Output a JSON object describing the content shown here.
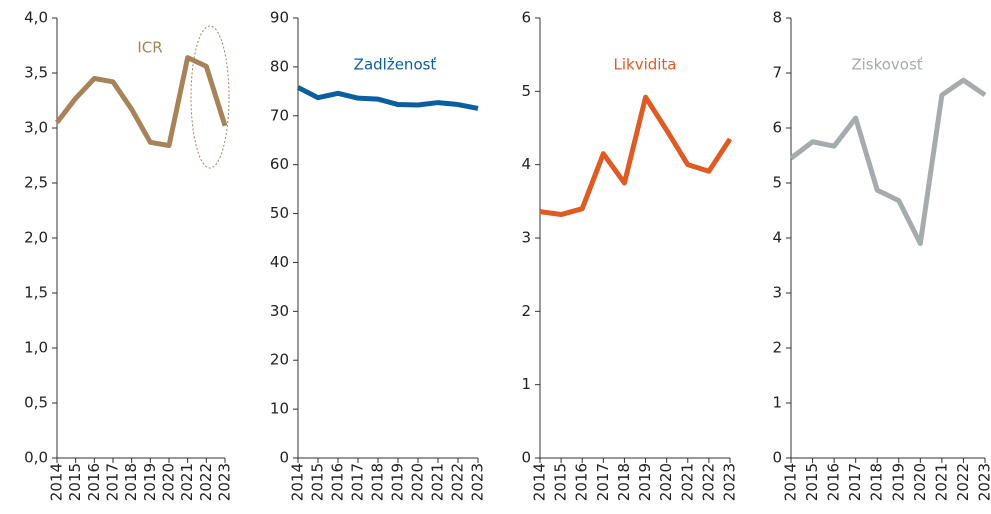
{
  "chart_data": [
    {
      "type": "line",
      "categories": [
        "2014",
        "2015",
        "2016",
        "2017",
        "2018",
        "2019",
        "2020",
        "2021",
        "2022",
        "2023"
      ],
      "series": [
        {
          "name": "ICR",
          "color": "#a8835a",
          "values": [
            3.05,
            3.27,
            3.45,
            3.42,
            3.17,
            2.87,
            2.84,
            3.64,
            3.56,
            3.02
          ]
        }
      ],
      "ylim": [
        0,
        4
      ],
      "yticks": [
        {
          "value": 0,
          "label": "0,0"
        },
        {
          "value": 0.5,
          "label": "0,5"
        },
        {
          "value": 1,
          "label": "1,0"
        },
        {
          "value": 1.5,
          "label": "1,5"
        },
        {
          "value": 2,
          "label": "2,0"
        },
        {
          "value": 2.5,
          "label": "2,5"
        },
        {
          "value": 3,
          "label": "3,0"
        },
        {
          "value": 3.5,
          "label": "3,5"
        },
        {
          "value": 4,
          "label": "4,0"
        }
      ]
    },
    {
      "type": "line",
      "categories": [
        "2014",
        "2015",
        "2016",
        "2017",
        "2018",
        "2019",
        "2020",
        "2021",
        "2022",
        "2023"
      ],
      "series": [
        {
          "name": "Zadlženosť",
          "color": "#0a5fa0",
          "values": [
            75.8,
            73.7,
            74.6,
            73.6,
            73.4,
            72.3,
            72.2,
            72.7,
            72.3,
            71.5
          ]
        }
      ],
      "ylim": [
        0,
        90
      ],
      "yticks": [
        0,
        10,
        20,
        30,
        40,
        50,
        60,
        70,
        80,
        90
      ]
    },
    {
      "type": "line",
      "categories": [
        "2014",
        "2015",
        "2016",
        "2017",
        "2018",
        "2019",
        "2020",
        "2021",
        "2022",
        "2023"
      ],
      "series": [
        {
          "name": "Likvidita",
          "color": "#e05a24",
          "values": [
            3.36,
            3.32,
            3.4,
            4.15,
            3.75,
            4.92,
            4.47,
            4.0,
            3.91,
            4.35
          ]
        }
      ],
      "ylim": [
        0,
        6
      ],
      "yticks": [
        0,
        1,
        2,
        3,
        4,
        5,
        6
      ]
    },
    {
      "type": "line",
      "categories": [
        "2014",
        "2015",
        "2016",
        "2017",
        "2018",
        "2019",
        "2020",
        "2021",
        "2022",
        "2023"
      ],
      "series": [
        {
          "name": "Ziskovosť",
          "color": "#a6abae",
          "values": [
            5.45,
            5.75,
            5.67,
            6.18,
            4.87,
            4.68,
            3.9,
            6.6,
            6.87,
            6.6
          ]
        }
      ],
      "ylim": [
        0,
        8
      ],
      "yticks": [
        0,
        1,
        2,
        3,
        4,
        5,
        6,
        7,
        8
      ]
    }
  ]
}
